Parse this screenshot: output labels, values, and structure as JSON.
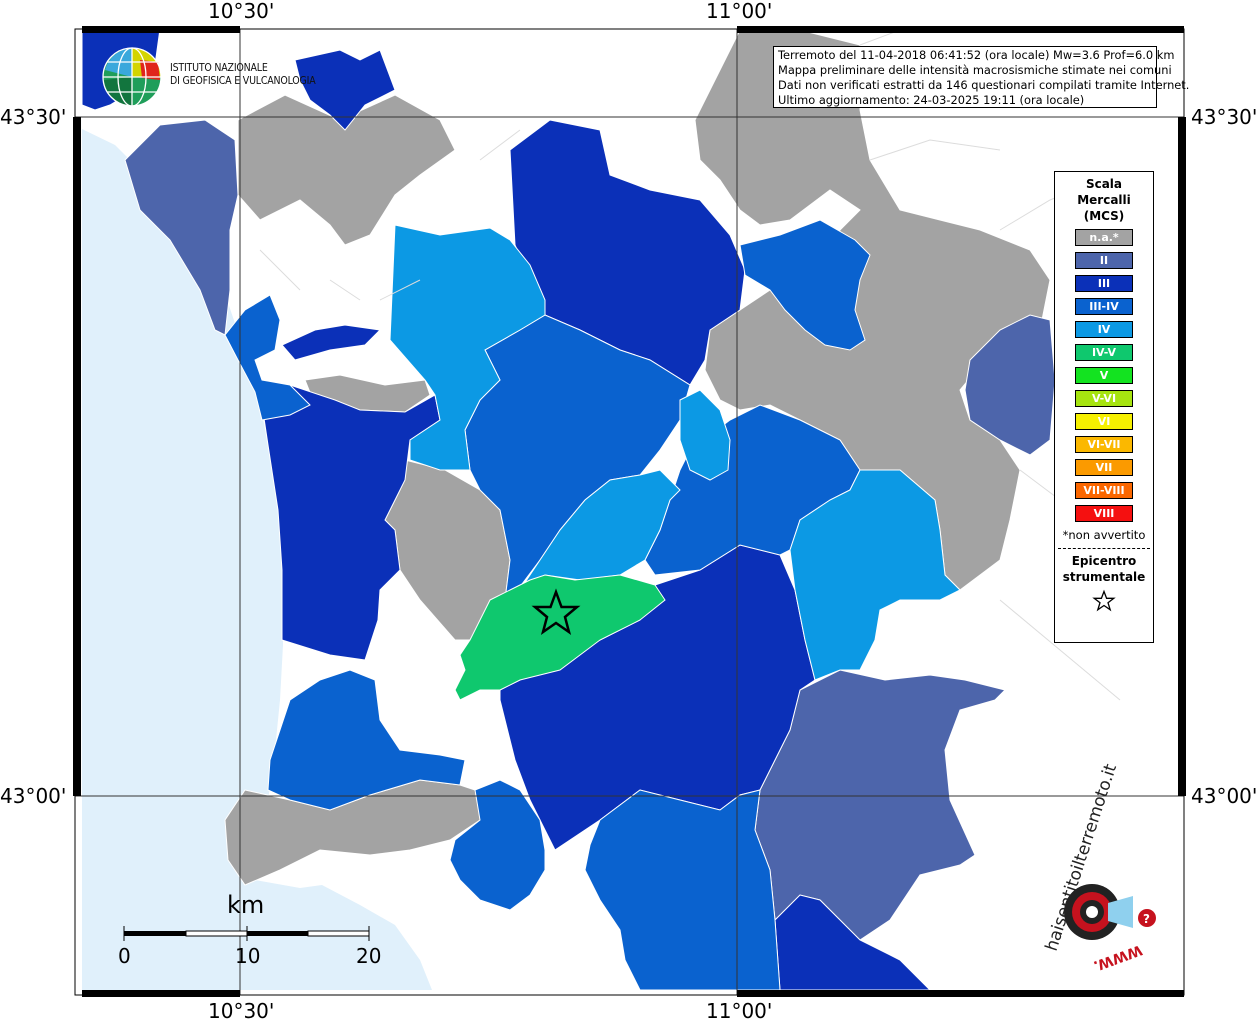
{
  "coords": {
    "top": [
      "10°30'",
      "11°00'"
    ],
    "bottom": [
      "10°30'",
      "11°00'"
    ],
    "left": [
      "43°30'",
      "43°00'"
    ],
    "right": [
      "43°30'",
      "43°00'"
    ]
  },
  "info": {
    "lines": [
      "Terremoto del 11-04-2018 06:41:52 (ora locale) Mw=3.6 Prof=6.0 km",
      "Mappa preliminare delle intensità macrosismiche stimate nei comuni",
      "Dati non verificati estratti da 146 questionari compilati tramite Internet.",
      "Ultimo aggiornamento: 24-03-2025 19:11 (ora locale)"
    ]
  },
  "logo": {
    "line1": "ISTITUTO NAZIONALE",
    "line2": "DI GEOFISICA E VULCANOLOGIA"
  },
  "legend": {
    "title": [
      "Scala",
      "Mercalli",
      "(MCS)"
    ],
    "items": [
      {
        "label": "n.a.*",
        "color": "#a3a3a3"
      },
      {
        "label": "II",
        "color": "#4d65ab"
      },
      {
        "label": "III",
        "color": "#0b30b8"
      },
      {
        "label": "III-IV",
        "color": "#0a62cf"
      },
      {
        "label": "IV",
        "color": "#0c99e4"
      },
      {
        "label": "IV-V",
        "color": "#0fc86e"
      },
      {
        "label": "V",
        "color": "#13e320"
      },
      {
        "label": "V-VI",
        "color": "#a6e410"
      },
      {
        "label": "VI",
        "color": "#f6f000"
      },
      {
        "label": "VI-VII",
        "color": "#fbb800"
      },
      {
        "label": "VII",
        "color": "#fb9a00"
      },
      {
        "label": "VII-VIII",
        "color": "#fb6700"
      },
      {
        "label": "VIII",
        "color": "#f51010"
      }
    ],
    "note": "*non avvertito",
    "epicenter": [
      "Epicentro",
      "strumentale"
    ]
  },
  "scalebar": {
    "unit": "km",
    "labels": [
      "0",
      "10",
      "20"
    ]
  },
  "hsit": {
    "main": "haisentitoilterremoto.it",
    "www": "WWW."
  },
  "colors": {
    "sea": "#e0f0fb",
    "grey": "#a3a3a3",
    "II": "#4d65ab",
    "III": "#0b30b8",
    "III-IV": "#0a62cf",
    "IV": "#0c99e4",
    "IV-V": "#0fc86e"
  }
}
